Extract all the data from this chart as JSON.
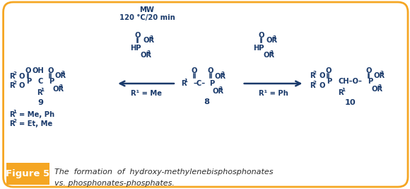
{
  "bg_color": "#ffffff",
  "border_color": "#f5a623",
  "fig_width": 5.8,
  "fig_height": 2.67,
  "caption_bg": "#f5a623",
  "caption_label": "Figure 5",
  "caption_line1": "The  formation  of  hydroxy-methylenebisphosphonates",
  "caption_line2": "vs. phosphonates-phosphates.",
  "text_color": "#1a3a6b",
  "caption_label_color": "#ffffff",
  "dpi": 100
}
